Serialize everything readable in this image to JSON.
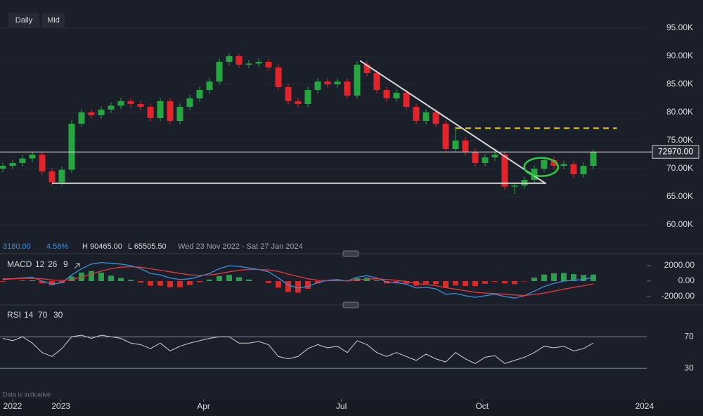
{
  "toolbar": {
    "interval": "Daily",
    "price_type": "Mid"
  },
  "info": {
    "change": "3180.00",
    "change_pct": "4.56%",
    "high": "H 90465.00",
    "low": "L 65505.50",
    "range": "Wed 23 Nov 2022 - Sat 27 Jan 2024"
  },
  "footer_note": "Data is indicative",
  "chart_data": [
    {
      "type": "candlestick",
      "categories": [
        null,
        null,
        null,
        null,
        null,
        null,
        null,
        null,
        null,
        null,
        null,
        null,
        null,
        null,
        null,
        null,
        null,
        null,
        null,
        null,
        null,
        null,
        null,
        null,
        null,
        null,
        null,
        null,
        null,
        null,
        null,
        null,
        null,
        null,
        null,
        null,
        null,
        null,
        null,
        null,
        null,
        null,
        null,
        null,
        null,
        null,
        null,
        null,
        null,
        null,
        null,
        null,
        null,
        null,
        null,
        null,
        null,
        null,
        null,
        null,
        null
      ],
      "open": [
        70000,
        70500,
        71000,
        71800,
        72500,
        69500,
        67600,
        69800,
        78000,
        80000,
        79500,
        80500,
        81200,
        82000,
        81500,
        81000,
        79000,
        82000,
        78500,
        81000,
        82500,
        84000,
        85500,
        89000,
        90000,
        88500,
        88700,
        89000,
        88000,
        84500,
        82000,
        81500,
        84000,
        85500,
        85000,
        85500,
        83000,
        88500,
        87000,
        84000,
        82500,
        83500,
        81000,
        78500,
        80000,
        78000,
        73500,
        75000,
        73000,
        71000,
        72000,
        72500,
        66800,
        67000,
        68000,
        70000,
        71500,
        70500,
        70800,
        69000,
        70500
      ],
      "high": [
        71100,
        71600,
        72400,
        73100,
        73100,
        70100,
        70400,
        78600,
        80600,
        80600,
        81100,
        81800,
        82600,
        82600,
        82100,
        81600,
        82600,
        82600,
        81600,
        83100,
        84600,
        86100,
        89600,
        90465,
        90400,
        89300,
        89600,
        89600,
        88600,
        85100,
        82600,
        84600,
        86100,
        86100,
        86100,
        86100,
        89100,
        89100,
        87600,
        84600,
        84100,
        84100,
        81600,
        80600,
        80600,
        78600,
        77500,
        75600,
        73600,
        72600,
        73600,
        73100,
        67600,
        68600,
        70600,
        72100,
        72100,
        71400,
        71400,
        71100,
        73300
      ],
      "low": [
        69400,
        69900,
        70400,
        71200,
        68900,
        67000,
        67000,
        69200,
        77400,
        78900,
        78900,
        79900,
        80600,
        80900,
        80400,
        78400,
        78400,
        77900,
        77900,
        80400,
        81900,
        83400,
        84900,
        88400,
        87900,
        87900,
        88100,
        87400,
        83900,
        81400,
        80900,
        80900,
        83400,
        84400,
        84400,
        82400,
        82400,
        86400,
        83400,
        81900,
        81900,
        80400,
        77900,
        77900,
        77400,
        72900,
        72900,
        72400,
        70400,
        70400,
        71400,
        66200,
        65505.5,
        66400,
        67400,
        69400,
        69900,
        69900,
        68400,
        68400,
        69900
      ],
      "close": [
        70500,
        71000,
        71800,
        72500,
        69500,
        67600,
        69800,
        78000,
        80000,
        79500,
        80500,
        81200,
        82000,
        81500,
        81000,
        79000,
        82000,
        78500,
        81000,
        82500,
        84000,
        85500,
        89000,
        90000,
        88500,
        88700,
        89000,
        88000,
        84500,
        82000,
        81500,
        84000,
        85500,
        85000,
        85500,
        83000,
        88500,
        87000,
        84000,
        82500,
        83500,
        81000,
        78500,
        80000,
        78000,
        73500,
        75000,
        73000,
        71000,
        72000,
        72500,
        66800,
        67000,
        68000,
        70000,
        71500,
        70500,
        70800,
        69000,
        70500,
        72970
      ],
      "colors": {
        "up": "#26a641",
        "down": "#e3242b"
      },
      "ylim": [
        56000,
        100000
      ],
      "yticks": [
        {
          "value": 60000,
          "label": "60.00K"
        },
        {
          "value": 65000,
          "label": "65.00K"
        },
        {
          "value": 70000,
          "label": "70.00K"
        },
        {
          "value": 75000,
          "label": "75.00K"
        },
        {
          "value": 80000,
          "label": "80.00K"
        },
        {
          "value": 85000,
          "label": "85.00K"
        },
        {
          "value": 90000,
          "label": "90.00K"
        },
        {
          "value": 95000,
          "label": "95.00K"
        }
      ],
      "xticks": [
        {
          "value": 1,
          "label": "2022"
        },
        {
          "value": 5.9,
          "label": "2023"
        },
        {
          "value": 20.4,
          "label": "Apr"
        },
        {
          "value": 34.4,
          "label": "Jul"
        },
        {
          "value": 48.7,
          "label": "Oct"
        },
        {
          "value": 65.2,
          "label": "2024"
        }
      ],
      "grid": true,
      "last_price": {
        "value": 72970,
        "label": "72970.00"
      },
      "annotations": [
        {
          "kind": "line",
          "from": [
            36.3,
            89200
          ],
          "to": [
            55.2,
            67300
          ],
          "color": "#d8d8d8"
        },
        {
          "kind": "line",
          "from": [
            5,
            67400
          ],
          "to": [
            55.2,
            67400
          ],
          "color": "#d8d8d8"
        },
        {
          "kind": "line",
          "from": [
            46,
            77200
          ],
          "to": [
            62.4,
            77200
          ],
          "color": "#e8d21d",
          "dashed": true
        },
        {
          "kind": "ellipse",
          "center": [
            54.7,
            70300
          ],
          "color": "#2ecc40"
        }
      ]
    },
    {
      "type": "macd",
      "title": "MACD",
      "params": [
        12,
        26,
        9
      ],
      "series": [
        {
          "color": "#3a8fd9",
          "values": [
            200,
            300,
            400,
            500,
            0,
            -400,
            -200,
            800,
            1600,
            2200,
            2400,
            2300,
            2200,
            2000,
            1600,
            1000,
            800,
            400,
            200,
            300,
            600,
            1000,
            1600,
            2000,
            1900,
            1700,
            1500,
            1200,
            400,
            -500,
            -900,
            -700,
            -200,
            100,
            200,
            0,
            500,
            700,
            400,
            -100,
            -200,
            -400,
            -900,
            -800,
            -1000,
            -1700,
            -1600,
            -1900,
            -2100,
            -1900,
            -1700,
            -2000,
            -2200,
            -1900,
            -1300,
            -700,
            -300,
            0,
            100,
            200,
            500
          ]
        },
        {
          "color": "#e0393e",
          "values": [
            300,
            300,
            330,
            370,
            300,
            150,
            80,
            200,
            500,
            900,
            1300,
            1600,
            1800,
            1850,
            1800,
            1600,
            1400,
            1200,
            1000,
            800,
            750,
            800,
            950,
            1200,
            1400,
            1500,
            1500,
            1450,
            1250,
            900,
            600,
            300,
            100,
            50,
            60,
            40,
            150,
            250,
            300,
            200,
            100,
            -50,
            -300,
            -450,
            -600,
            -850,
            -1050,
            -1250,
            -1450,
            -1550,
            -1600,
            -1700,
            -1800,
            -1850,
            -1750,
            -1550,
            -1300,
            -1050,
            -800,
            -600,
            -350
          ]
        }
      ],
      "histogram": {
        "up_color": "#2e9e4e",
        "down_color": "#d62b2b",
        "values": [
          -100,
          0,
          70,
          130,
          -300,
          -550,
          -280,
          600,
          1100,
          1300,
          1100,
          700,
          400,
          150,
          -200,
          -600,
          -600,
          -800,
          -800,
          -500,
          -150,
          200,
          650,
          800,
          500,
          200,
          0,
          -250,
          -850,
          -1400,
          -1500,
          -1000,
          -300,
          50,
          140,
          -40,
          350,
          450,
          100,
          -300,
          -300,
          -350,
          -600,
          -350,
          -400,
          -850,
          -550,
          -650,
          -650,
          -350,
          -100,
          -300,
          -400,
          -50,
          450,
          850,
          1000,
          1050,
          900,
          800,
          850
        ]
      },
      "ylim": [
        -3000,
        3000
      ],
      "yticks": [
        {
          "value": -2000,
          "label": "-2000.00"
        },
        {
          "value": 0,
          "label": "0.00"
        },
        {
          "value": 2000,
          "label": "2000.00"
        }
      ]
    },
    {
      "type": "line",
      "title": "RSI",
      "params": [
        14,
        70,
        30
      ],
      "color": "#d0d0d0",
      "values": [
        68,
        65,
        70,
        62,
        50,
        45,
        55,
        70,
        72,
        68,
        72,
        70,
        68,
        62,
        60,
        55,
        62,
        52,
        58,
        62,
        65,
        68,
        70,
        70,
        62,
        62,
        64,
        60,
        45,
        42,
        45,
        55,
        60,
        56,
        58,
        50,
        65,
        60,
        50,
        45,
        50,
        45,
        40,
        48,
        42,
        38,
        50,
        42,
        36,
        44,
        46,
        36,
        40,
        44,
        50,
        58,
        56,
        58,
        52,
        55,
        62
      ],
      "ylim": [
        0,
        105
      ],
      "yticks": [
        30,
        70
      ]
    }
  ]
}
